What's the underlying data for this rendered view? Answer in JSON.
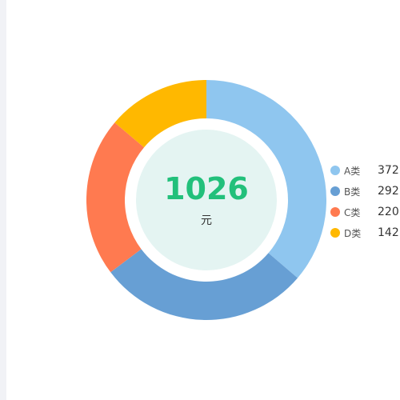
{
  "chart_data": {
    "type": "pie",
    "variant": "donut",
    "categories": [
      "A类",
      "B类",
      "C类",
      "D类"
    ],
    "values": [
      372,
      292,
      220,
      142
    ],
    "colors": [
      "#8fc6ef",
      "#679fd4",
      "#ff7a50",
      "#ffb800"
    ],
    "total": "1026",
    "unit": "元",
    "legend_placement": "right",
    "center_fill": "#e4f4f2",
    "total_color": "#22c07b"
  }
}
